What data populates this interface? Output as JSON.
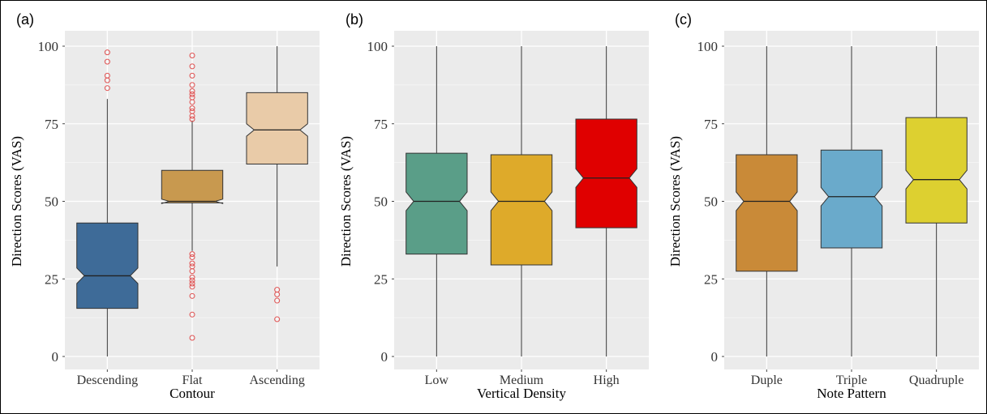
{
  "chart_data": [
    {
      "type": "boxplot",
      "panel_label": "(a)",
      "title": "",
      "xlabel": "Contour",
      "ylabel": "Direction Scores (VAS)",
      "ylim": [
        0,
        100
      ],
      "yticks": [
        0,
        25,
        50,
        75,
        100
      ],
      "grid": true,
      "notched": true,
      "categories": [
        "Descending",
        "Flat",
        "Ascending"
      ],
      "boxes": [
        {
          "name": "Descending",
          "color": "#3E6B98",
          "whisker_low": 0,
          "q1": 15.5,
          "median": 26,
          "q3": 43,
          "whisker_high": 83,
          "notch_low": 23.5,
          "notch_high": 28.5,
          "outliers": [
            86.5,
            89,
            90.5,
            95,
            98
          ]
        },
        {
          "name": "Flat",
          "color": "#C8994F",
          "whisker_low": 34,
          "q1": 49.5,
          "median": 50,
          "q3": 60,
          "whisker_high": 76,
          "notch_low": 49.3,
          "notch_high": 50.7,
          "outliers": [
            6,
            13.5,
            19.5,
            22.5,
            23.5,
            24.5,
            25.5,
            27.5,
            29,
            30,
            32,
            33,
            76.5,
            77.5,
            79,
            80,
            82,
            83.5,
            84.5,
            85.5,
            87.5,
            90.5,
            93.5,
            97
          ]
        },
        {
          "name": "Ascending",
          "color": "#E9CBA8",
          "whisker_low": 29,
          "q1": 62,
          "median": 73,
          "q3": 85,
          "whisker_high": 100,
          "notch_low": 71,
          "notch_high": 75,
          "outliers": [
            12,
            18,
            20,
            21.5
          ]
        }
      ]
    },
    {
      "type": "boxplot",
      "panel_label": "(b)",
      "title": "",
      "xlabel": "Vertical Density",
      "ylabel": "Direction Scores (VAS)",
      "ylim": [
        0,
        100
      ],
      "yticks": [
        0,
        25,
        50,
        75,
        100
      ],
      "grid": true,
      "notched": true,
      "categories": [
        "Low",
        "Medium",
        "High"
      ],
      "boxes": [
        {
          "name": "Low",
          "color": "#5A9E88",
          "whisker_low": 0,
          "q1": 33,
          "median": 50,
          "q3": 65.5,
          "whisker_high": 100,
          "notch_low": 47,
          "notch_high": 53,
          "outliers": []
        },
        {
          "name": "Medium",
          "color": "#DEAA2A",
          "whisker_low": 0,
          "q1": 29.5,
          "median": 50,
          "q3": 65,
          "whisker_high": 100,
          "notch_low": 47,
          "notch_high": 53,
          "outliers": []
        },
        {
          "name": "High",
          "color": "#E00000",
          "whisker_low": 0,
          "q1": 41.5,
          "median": 57.5,
          "q3": 76.5,
          "whisker_high": 100,
          "notch_low": 54.5,
          "notch_high": 60.5,
          "outliers": []
        }
      ]
    },
    {
      "type": "boxplot",
      "panel_label": "(c)",
      "title": "",
      "xlabel": "Note Pattern",
      "ylabel": "Direction Scores (VAS)",
      "ylim": [
        0,
        100
      ],
      "yticks": [
        0,
        25,
        50,
        75,
        100
      ],
      "grid": true,
      "notched": true,
      "categories": [
        "Duple",
        "Triple",
        "Quadruple"
      ],
      "boxes": [
        {
          "name": "Duple",
          "color": "#C98A38",
          "whisker_low": 0,
          "q1": 27.5,
          "median": 50,
          "q3": 65,
          "whisker_high": 100,
          "notch_low": 47,
          "notch_high": 53,
          "outliers": []
        },
        {
          "name": "Triple",
          "color": "#6AAACB",
          "whisker_low": 0,
          "q1": 35,
          "median": 51.5,
          "q3": 66.5,
          "whisker_high": 100,
          "notch_low": 48.5,
          "notch_high": 54.5,
          "outliers": []
        },
        {
          "name": "Quadruple",
          "color": "#DDD030",
          "whisker_low": 0,
          "q1": 43,
          "median": 57,
          "q3": 77,
          "whisker_high": 100,
          "notch_low": 54,
          "notch_high": 60,
          "outliers": []
        }
      ]
    }
  ]
}
